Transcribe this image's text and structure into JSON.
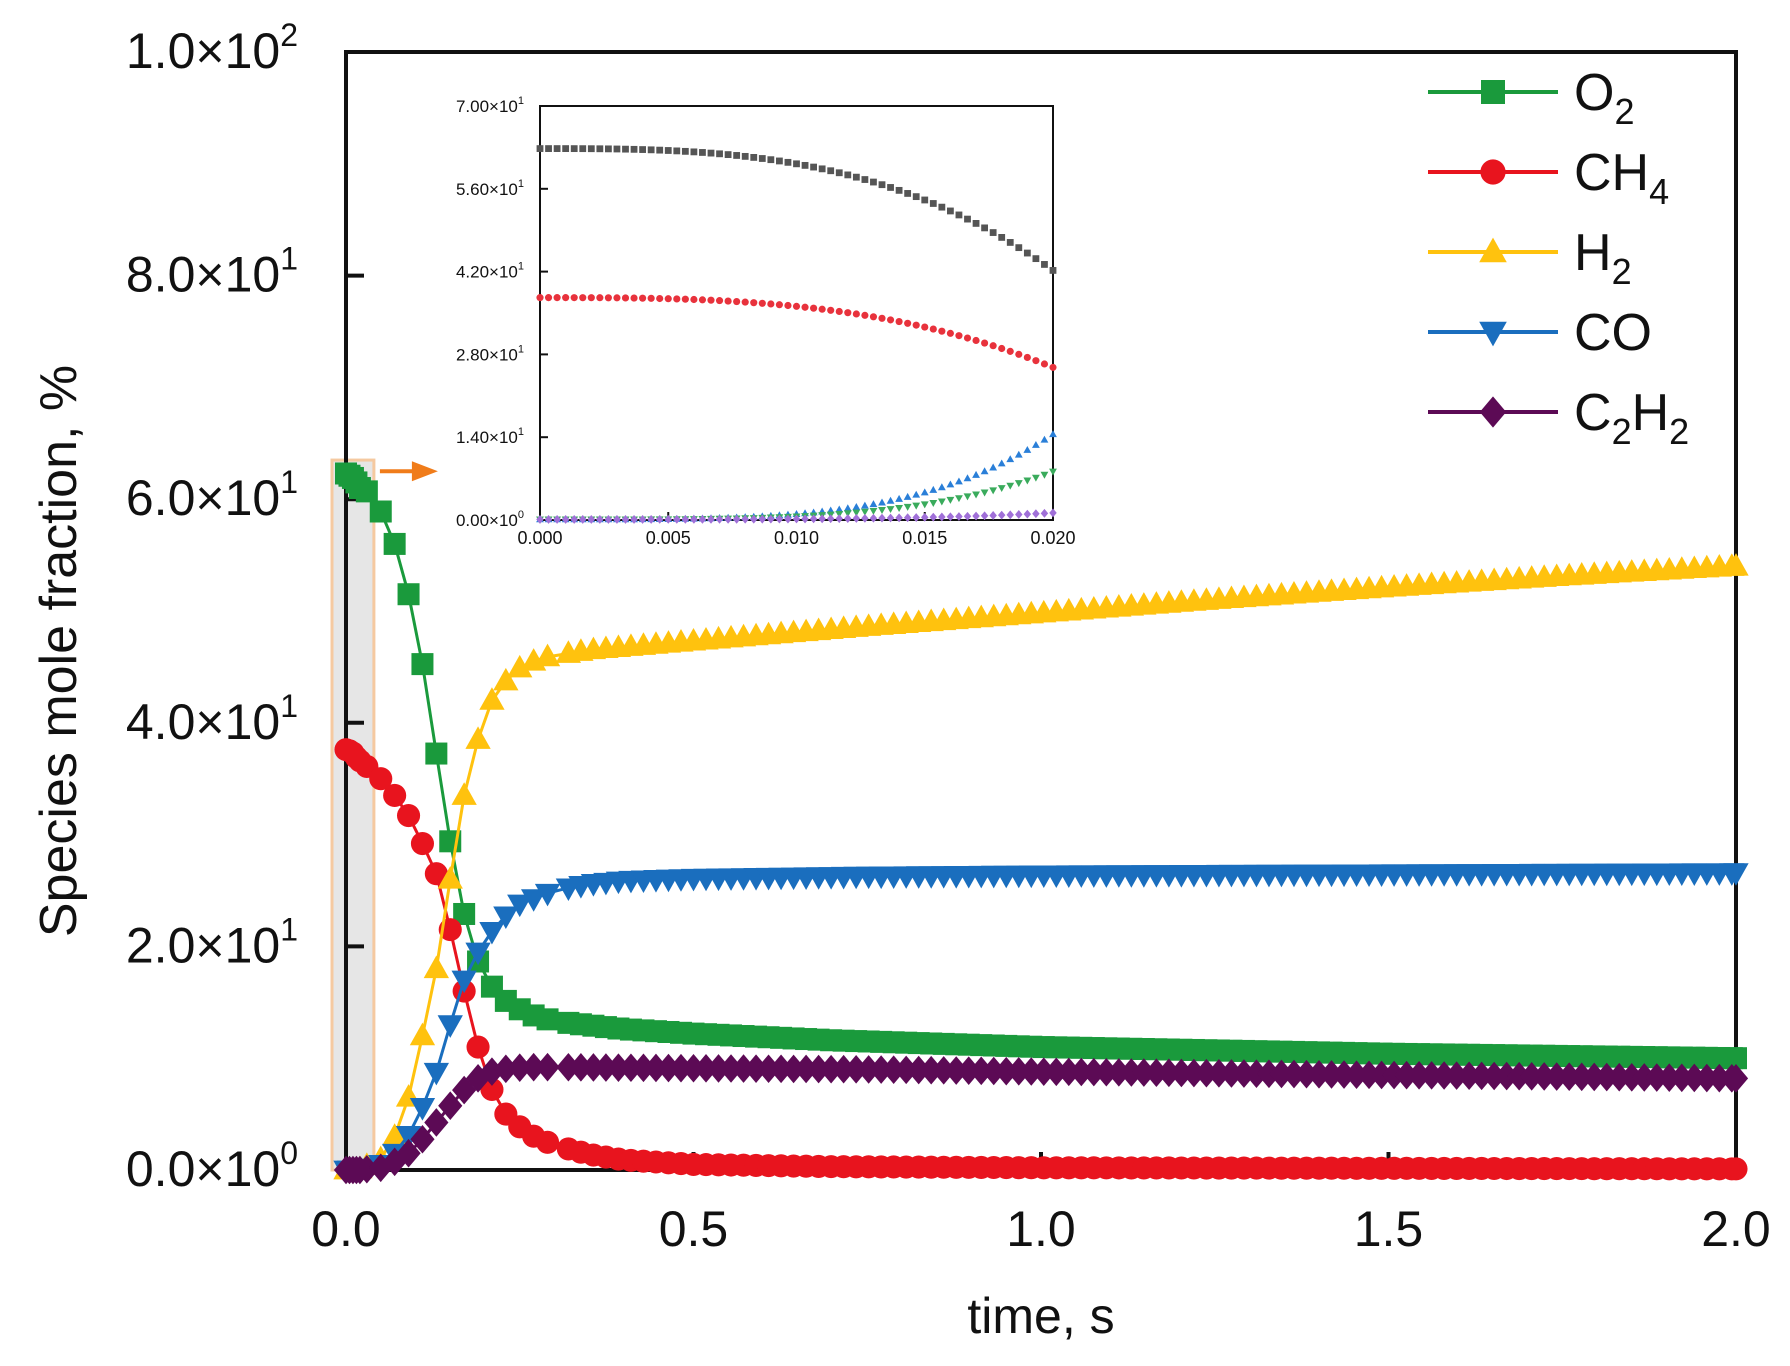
{
  "chart_data": [
    {
      "type": "line",
      "role": "main",
      "title": "",
      "xlabel": "time, s",
      "ylabel": "Species mole fraction, %",
      "xlim": [
        0,
        2.0
      ],
      "ylim": [
        0,
        100
      ],
      "xticks": [
        {
          "value": 0,
          "label": "0.0"
        },
        {
          "value": 0.5,
          "label": "0.5"
        },
        {
          "value": 1.0,
          "label": "1.0"
        },
        {
          "value": 1.5,
          "label": "1.5"
        },
        {
          "value": 2.0,
          "label": "2.0"
        }
      ],
      "yticks": [
        {
          "value": 0,
          "mant": "0.0×10",
          "exp": "0"
        },
        {
          "value": 20,
          "mant": "2.0×10",
          "exp": "1"
        },
        {
          "value": 40,
          "mant": "4.0×10",
          "exp": "1"
        },
        {
          "value": 60,
          "mant": "6.0×10",
          "exp": "1"
        },
        {
          "value": 80,
          "mant": "8.0×10",
          "exp": "1"
        },
        {
          "value": 100,
          "mant": "1.0×10",
          "exp": "2"
        }
      ],
      "legend_position": "top-right",
      "highlight_region": {
        "x": [
          0,
          0.02
        ],
        "fill": "#e6e6e6",
        "stroke": "#f5c9a0",
        "arrow": "#f07c1a"
      },
      "series": [
        {
          "name": "O2",
          "base": "O",
          "sub": "2",
          "color": "#1a9a3c",
          "marker": "square",
          "points": [
            [
              0,
              62.3
            ],
            [
              0.005,
              62.1
            ],
            [
              0.01,
              61.9
            ],
            [
              0.015,
              61.5
            ],
            [
              0.02,
              61
            ],
            [
              0.03,
              60.7
            ],
            [
              0.06,
              58
            ],
            [
              0.08,
              54
            ],
            [
              0.1,
              49
            ],
            [
              0.12,
              41.5
            ],
            [
              0.14,
              33
            ],
            [
              0.16,
              25.8
            ],
            [
              0.18,
              20
            ],
            [
              0.2,
              17.3
            ],
            [
              0.22,
              15.5
            ],
            [
              0.26,
              14
            ],
            [
              0.3,
              13.3
            ],
            [
              0.4,
              12.6
            ],
            [
              0.5,
              12.2
            ],
            [
              0.7,
              11.6
            ],
            [
              1.0,
              11
            ],
            [
              1.5,
              10.4
            ],
            [
              2.0,
              10
            ]
          ]
        },
        {
          "name": "CH4",
          "base": "CH",
          "sub": "4",
          "color": "#e8141e",
          "marker": "circle",
          "points": [
            [
              0,
              37.6
            ],
            [
              0.005,
              37.5
            ],
            [
              0.01,
              37.3
            ],
            [
              0.015,
              36.9
            ],
            [
              0.02,
              36.6
            ],
            [
              0.03,
              36.1
            ],
            [
              0.05,
              35
            ],
            [
              0.07,
              33.5
            ],
            [
              0.09,
              31.7
            ],
            [
              0.11,
              29.2
            ],
            [
              0.13,
              26.5
            ],
            [
              0.15,
              21.5
            ],
            [
              0.17,
              16
            ],
            [
              0.19,
              11
            ],
            [
              0.21,
              7.2
            ],
            [
              0.23,
              5
            ],
            [
              0.26,
              3.3
            ],
            [
              0.3,
              2.2
            ],
            [
              0.35,
              1.4
            ],
            [
              0.4,
              0.9
            ],
            [
              0.5,
              0.5
            ],
            [
              0.7,
              0.3
            ],
            [
              1.0,
              0.2
            ],
            [
              2.0,
              0.1
            ]
          ]
        },
        {
          "name": "H2",
          "base": "H",
          "sub": "2",
          "color": "#ffc20e",
          "marker": "triangle-up",
          "points": [
            [
              0,
              0
            ],
            [
              0.02,
              0.1
            ],
            [
              0.05,
              1
            ],
            [
              0.07,
              3
            ],
            [
              0.09,
              6.5
            ],
            [
              0.11,
              12
            ],
            [
              0.13,
              18
            ],
            [
              0.15,
              26
            ],
            [
              0.17,
              33.5
            ],
            [
              0.19,
              38.5
            ],
            [
              0.21,
              42
            ],
            [
              0.24,
              44.6
            ],
            [
              0.28,
              45.8
            ],
            [
              0.35,
              46.5
            ],
            [
              0.5,
              47.3
            ],
            [
              0.75,
              48.6
            ],
            [
              1.0,
              49.8
            ],
            [
              1.25,
              51
            ],
            [
              1.5,
              52.1
            ],
            [
              1.75,
              53.1
            ],
            [
              2.0,
              54
            ]
          ]
        },
        {
          "name": "CO",
          "base": "CO",
          "sub": "",
          "color": "#1a6ebe",
          "marker": "triangle-down",
          "points": [
            [
              0,
              0
            ],
            [
              0.02,
              0
            ],
            [
              0.05,
              0.5
            ],
            [
              0.08,
              2
            ],
            [
              0.1,
              4.2
            ],
            [
              0.12,
              7
            ],
            [
              0.14,
              10.5
            ],
            [
              0.16,
              15.5
            ],
            [
              0.18,
              18.5
            ],
            [
              0.2,
              20.5
            ],
            [
              0.22,
              22.2
            ],
            [
              0.25,
              23.8
            ],
            [
              0.3,
              25
            ],
            [
              0.35,
              25.6
            ],
            [
              0.4,
              25.9
            ],
            [
              0.5,
              26.1
            ],
            [
              0.75,
              26.3
            ],
            [
              1.0,
              26.4
            ],
            [
              1.5,
              26.5
            ],
            [
              2.0,
              26.6
            ]
          ]
        },
        {
          "name": "C2H2",
          "base": "C",
          "sub": "2",
          "base2": "H",
          "sub2": "2",
          "color": "#5c0a55",
          "marker": "diamond",
          "points": [
            [
              0,
              0
            ],
            [
              0.02,
              0
            ],
            [
              0.05,
              0.2
            ],
            [
              0.08,
              1
            ],
            [
              0.1,
              2
            ],
            [
              0.12,
              3.5
            ],
            [
              0.14,
              5
            ],
            [
              0.16,
              6.5
            ],
            [
              0.18,
              7.8
            ],
            [
              0.2,
              8.6
            ],
            [
              0.22,
              9
            ],
            [
              0.26,
              9.2
            ],
            [
              0.3,
              9.2
            ],
            [
              0.5,
              9.1
            ],
            [
              0.75,
              9
            ],
            [
              1.0,
              8.8
            ],
            [
              1.5,
              8.5
            ],
            [
              2.0,
              8.2
            ]
          ]
        }
      ]
    },
    {
      "type": "scatter",
      "role": "inset",
      "xlim": [
        0,
        0.02
      ],
      "ylim": [
        0,
        70
      ],
      "xticks": [
        {
          "value": 0,
          "label": "0.000"
        },
        {
          "value": 0.005,
          "label": "0.005"
        },
        {
          "value": 0.01,
          "label": "0.010"
        },
        {
          "value": 0.015,
          "label": "0.015"
        },
        {
          "value": 0.02,
          "label": "0.020"
        }
      ],
      "yticks": [
        {
          "value": 0,
          "mant": "0.00×10",
          "exp": "0"
        },
        {
          "value": 14,
          "mant": "1.40×10",
          "exp": "1"
        },
        {
          "value": 28,
          "mant": "2.80×10",
          "exp": "1"
        },
        {
          "value": 42,
          "mant": "4.20×10",
          "exp": "1"
        },
        {
          "value": 56,
          "mant": "5.60×10",
          "exp": "1"
        },
        {
          "value": 70,
          "mant": "7.00×10",
          "exp": "1"
        }
      ],
      "series": [
        {
          "name": "series-gray",
          "color": "#555555",
          "marker": "square",
          "start": 62.8,
          "end": 42.2,
          "power": 3
        },
        {
          "name": "series-red",
          "color": "#e8323c",
          "marker": "circle",
          "start": 37.6,
          "end": 25.8,
          "power": 3
        },
        {
          "name": "series-blue",
          "color": "#2a7fd8",
          "marker": "triangle-up",
          "start": 0.1,
          "end": 14.5,
          "power": 4
        },
        {
          "name": "series-green",
          "color": "#3aab5c",
          "marker": "triangle-down",
          "start": 0.1,
          "end": 8.2,
          "power": 4
        },
        {
          "name": "series-violet",
          "color": "#a070d8",
          "marker": "diamond",
          "start": 0.1,
          "end": 1.2,
          "power": 4
        }
      ]
    }
  ]
}
